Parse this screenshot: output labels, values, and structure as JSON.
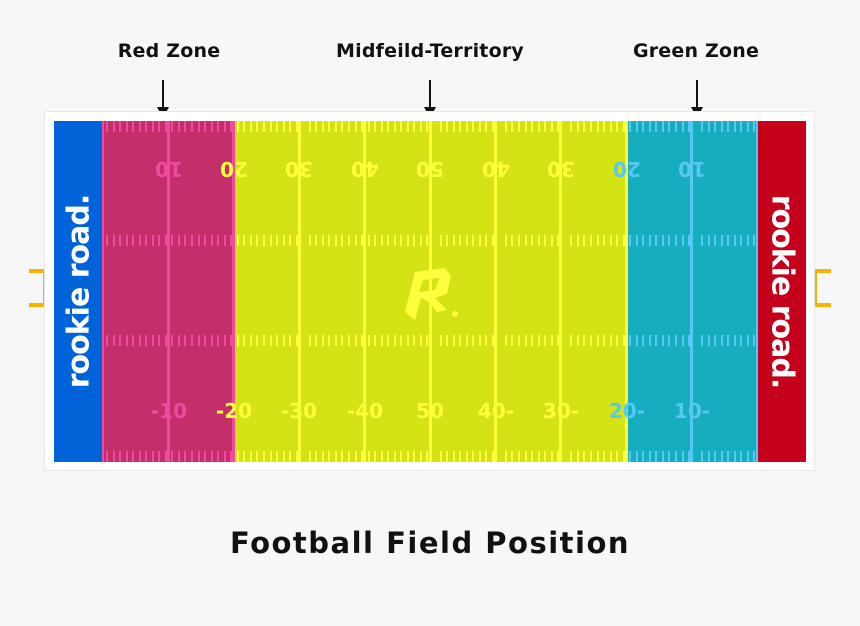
{
  "labels": {
    "red_zone": "Red Zone",
    "midfield": "Midfeild-Territory",
    "green_zone": "Green Zone"
  },
  "title": "Football Field Position",
  "end_zones": {
    "left": {
      "text": "rookie road.",
      "color": "#0063d7"
    },
    "right": {
      "text": "rookie road.",
      "color": "#c4001a"
    }
  },
  "zones": [
    {
      "name": "Red Zone",
      "color": "#c22f6b",
      "line_color": "#f04aa0"
    },
    {
      "name": "Midfield Territory",
      "color": "#d4e314",
      "line_color": "#ffff40"
    },
    {
      "name": "Green Zone",
      "color": "#16aebe",
      "line_color": "#55c8f5"
    }
  ],
  "yard_numbers_top": [
    "10",
    "20",
    "30",
    "40",
    "50",
    "40",
    "30",
    "20",
    "10"
  ],
  "yard_numbers_bottom": [
    "-10",
    "-20",
    "-30",
    "-40",
    "50",
    "40-",
    "30-",
    "20-",
    "10-"
  ],
  "center_logo": "R",
  "accent_bracket_color": "#f6b400"
}
